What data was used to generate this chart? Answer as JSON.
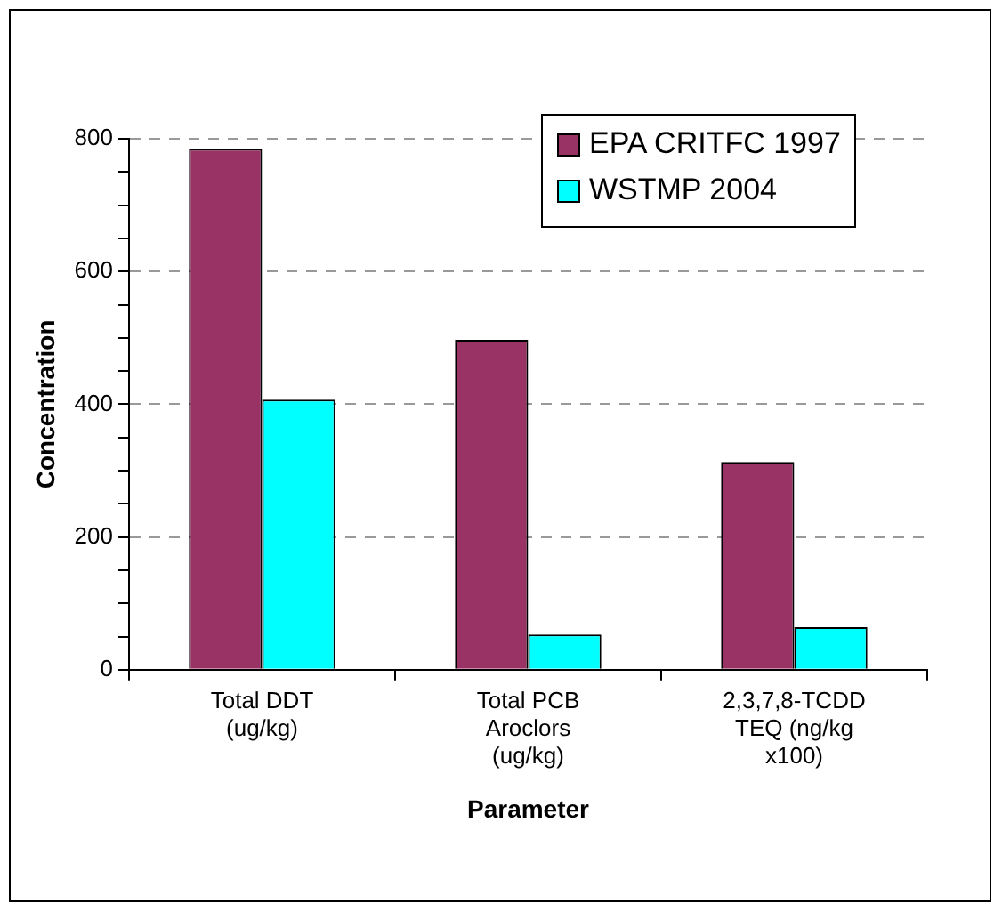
{
  "chart_data": {
    "type": "bar",
    "xlabel": "Parameter",
    "ylabel": "Concentration",
    "categories": [
      "Total DDT (ug/kg)",
      "Total PCB Aroclors (ug/kg)",
      "2,3,7,8-TCDD TEQ (ng/kg x100)"
    ],
    "series": [
      {
        "name": "EPA CRITFC 1997",
        "color": "#993366",
        "values": [
          785,
          497,
          313
        ]
      },
      {
        "name": "WSTMP 2004",
        "color": "#00ffff",
        "values": [
          407,
          53,
          64
        ]
      }
    ],
    "ylim": [
      0,
      800
    ],
    "yticks": [
      0,
      {
        "value": 50,
        "label": null
      },
      {
        "value": 100,
        "label": null
      },
      {
        "value": 150,
        "label": null
      },
      200,
      {
        "value": 250,
        "label": null
      },
      {
        "value": 300,
        "label": null
      },
      {
        "value": 350,
        "label": null
      },
      400,
      {
        "value": 450,
        "label": null
      },
      {
        "value": 500,
        "label": null
      },
      {
        "value": 550,
        "label": null
      },
      600,
      {
        "value": 650,
        "label": null
      },
      {
        "value": 700,
        "label": null
      },
      {
        "value": 750,
        "label": null
      },
      800
    ],
    "grid": "y",
    "legend": "top right"
  }
}
